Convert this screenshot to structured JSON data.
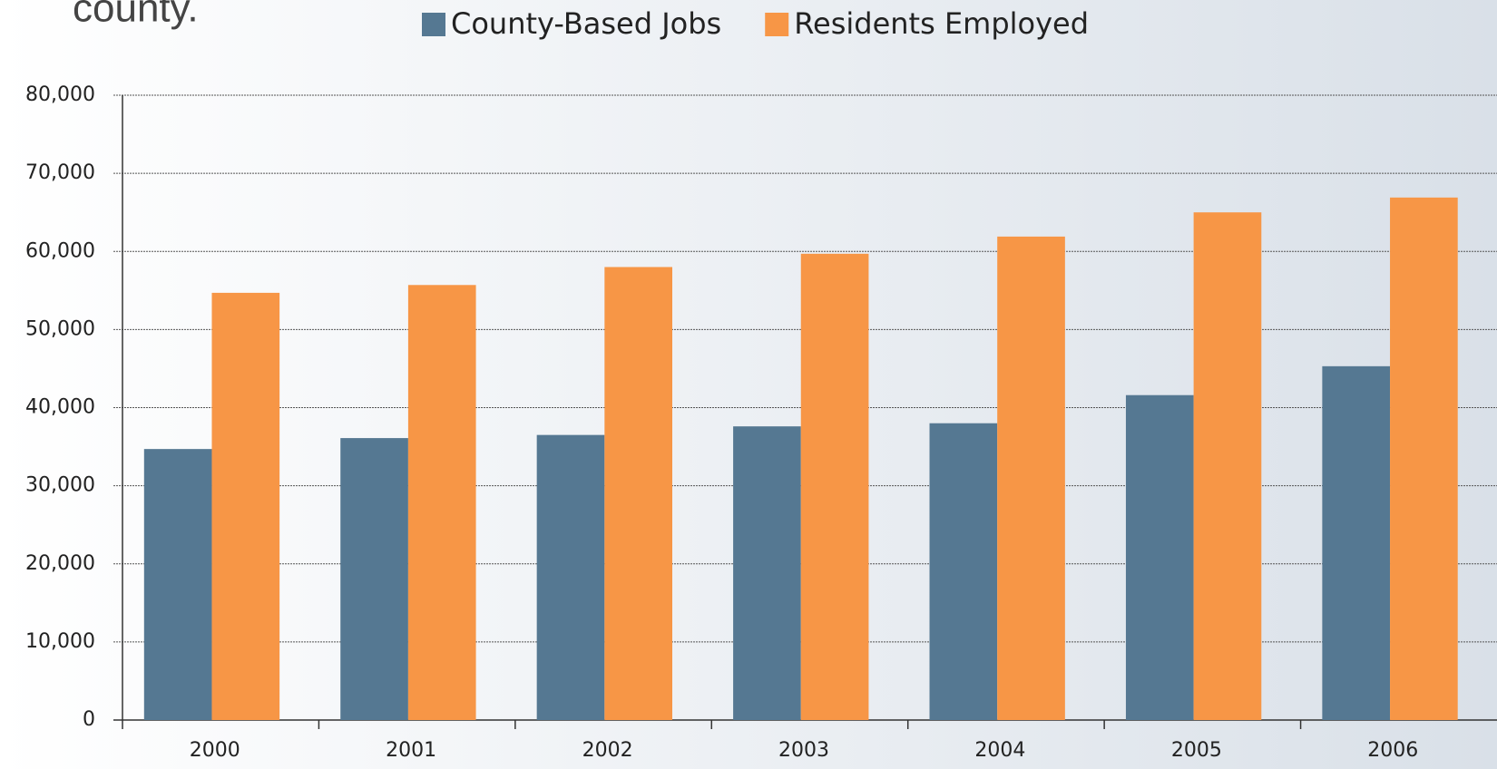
{
  "chart_data": {
    "type": "bar",
    "title": "county.",
    "categories": [
      "2000",
      "2001",
      "2002",
      "2003",
      "2004",
      "2005",
      "2006"
    ],
    "series": [
      {
        "name": "County-Based Jobs",
        "color": "#557892",
        "values": [
          34700,
          36100,
          36500,
          37600,
          38000,
          41600,
          45300
        ]
      },
      {
        "name": "Residents Employed",
        "color": "#f79646",
        "values": [
          54700,
          55700,
          58000,
          59700,
          61900,
          65000,
          66900
        ]
      }
    ],
    "ylim": [
      0,
      80000
    ],
    "yticks": [
      0,
      {
        "value": 10000,
        "label": "10,000"
      },
      {
        "value": 20000,
        "label": "20,000"
      },
      {
        "value": 30000,
        "label": "30,000"
      },
      {
        "value": 40000,
        "label": "40,000"
      },
      {
        "value": 50000,
        "label": "50,000"
      },
      {
        "value": 60000,
        "label": "60,000"
      },
      {
        "value": 70000,
        "label": "70,000"
      },
      {
        "value": 80000,
        "label": "80,000"
      }
    ],
    "grid": true
  }
}
